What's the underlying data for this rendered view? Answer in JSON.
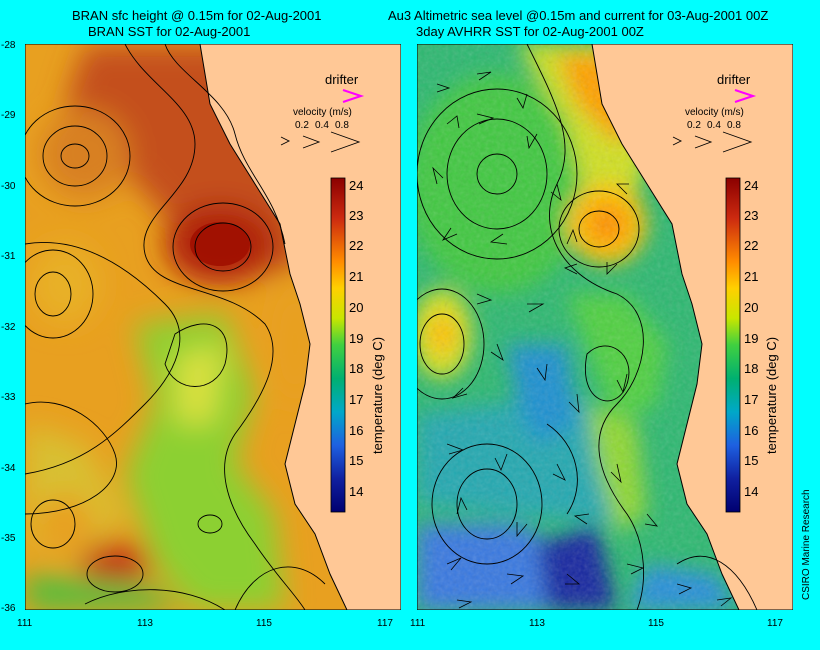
{
  "left_panel": {
    "title_line1": "BRAN sfc height @ 0.15m for 02-Aug-2001",
    "title_line2": "BRAN SST for 02-Aug-2001"
  },
  "right_panel": {
    "title_line1": "Au3 Altimetric sea level  @0.15m and current for 03-Aug-2001 00Z",
    "title_line2": "3day AVHRR SST for 02-Aug-2001 00Z"
  },
  "legend": {
    "drifter_label": "drifter",
    "velocity_label": "velocity (m/s)",
    "velocity_values": [
      "0.2",
      "0.4",
      "0.8"
    ],
    "colorbar_label": "temperature (deg C)",
    "colorbar_ticks": [
      "24",
      "23",
      "22",
      "21",
      "20",
      "19",
      "18",
      "17",
      "16",
      "15",
      "14"
    ]
  },
  "axes": {
    "lat_ticks": [
      "-28",
      "-29",
      "-30",
      "-31",
      "-32",
      "-33",
      "-34",
      "-35",
      "-36"
    ],
    "lon_ticks": [
      "111",
      "113",
      "115",
      "117"
    ]
  },
  "colors": {
    "background": "#00ffff",
    "land": "#ffc896",
    "drifter": "#ff00ff"
  },
  "credit": "CSIRO Marine Research"
}
